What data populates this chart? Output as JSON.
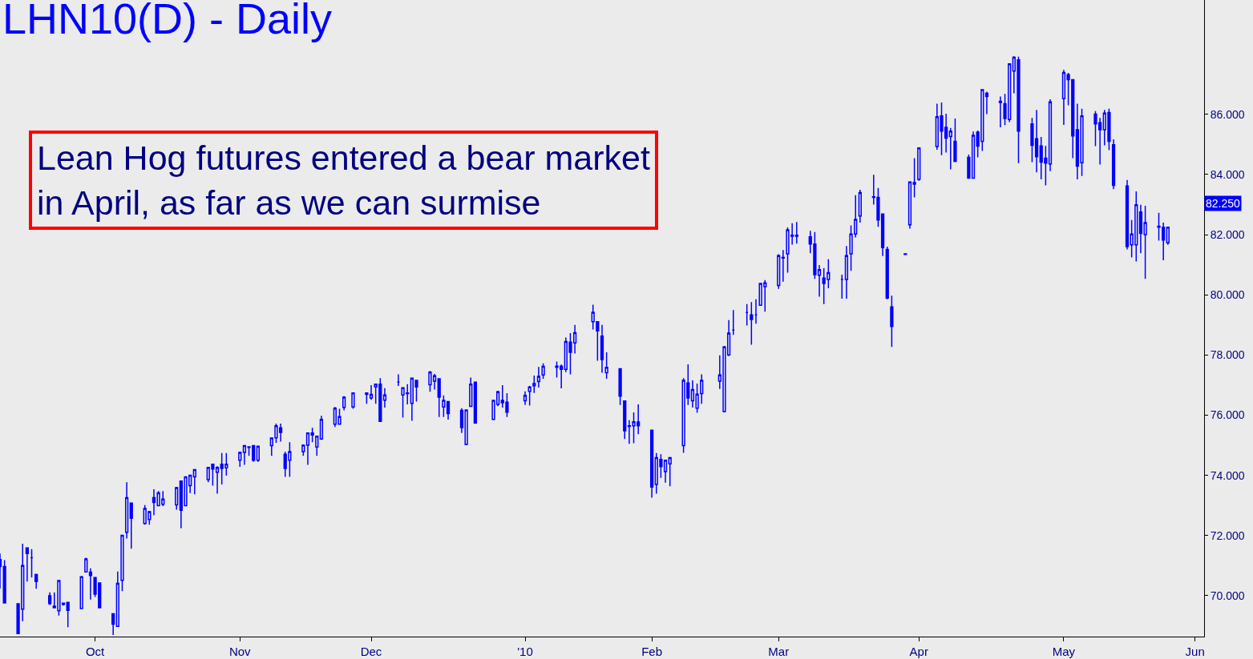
{
  "chart_data": {
    "type": "candlestick",
    "title": "LHN10(D) - Daily",
    "color": "#0000ff",
    "x": [
      "2009-09-10",
      "2009-09-11",
      "2009-09-14",
      "2009-09-15",
      "2009-09-16",
      "2009-09-17",
      "2009-09-18",
      "2009-09-21",
      "2009-09-22",
      "2009-09-23",
      "2009-09-24",
      "2009-09-25",
      "2009-09-28",
      "2009-09-29",
      "2009-09-30",
      "2009-10-01",
      "2009-10-02",
      "2009-10-05",
      "2009-10-06",
      "2009-10-07",
      "2009-10-08",
      "2009-10-09",
      "2009-10-12",
      "2009-10-13",
      "2009-10-14",
      "2009-10-15",
      "2009-10-16",
      "2009-10-19",
      "2009-10-20",
      "2009-10-21",
      "2009-10-22",
      "2009-10-23",
      "2009-10-26",
      "2009-10-27",
      "2009-10-28",
      "2009-10-29",
      "2009-10-30",
      "2009-11-02",
      "2009-11-03",
      "2009-11-04",
      "2009-11-05",
      "2009-11-06",
      "2009-11-09",
      "2009-11-10",
      "2009-11-11",
      "2009-11-12",
      "2009-11-13",
      "2009-11-16",
      "2009-11-17",
      "2009-11-18",
      "2009-11-19",
      "2009-11-20",
      "2009-11-23",
      "2009-11-24",
      "2009-11-25",
      "2009-11-27",
      "2009-11-30",
      "2009-12-01",
      "2009-12-02",
      "2009-12-03",
      "2009-12-04",
      "2009-12-07",
      "2009-12-08",
      "2009-12-09",
      "2009-12-10",
      "2009-12-11",
      "2009-12-14",
      "2009-12-15",
      "2009-12-16",
      "2009-12-17",
      "2009-12-18",
      "2009-12-21",
      "2009-12-22",
      "2009-12-23",
      "2009-12-24",
      "2009-12-28",
      "2009-12-29",
      "2009-12-30",
      "2009-12-31",
      "2010-01-04",
      "2010-01-05",
      "2010-01-06",
      "2010-01-07",
      "2010-01-08",
      "2010-01-11",
      "2010-01-12",
      "2010-01-13",
      "2010-01-14",
      "2010-01-15",
      "2010-01-19",
      "2010-01-20",
      "2010-01-21",
      "2010-01-22",
      "2010-01-25",
      "2010-01-26",
      "2010-01-27",
      "2010-01-28",
      "2010-01-29",
      "2010-02-01",
      "2010-02-02",
      "2010-02-03",
      "2010-02-04",
      "2010-02-05",
      "2010-02-08",
      "2010-02-09",
      "2010-02-10",
      "2010-02-11",
      "2010-02-12",
      "2010-02-16",
      "2010-02-17",
      "2010-02-18",
      "2010-02-19",
      "2010-02-22",
      "2010-02-23",
      "2010-02-24",
      "2010-02-25",
      "2010-02-26",
      "2010-03-01",
      "2010-03-02",
      "2010-03-03",
      "2010-03-04",
      "2010-03-05",
      "2010-03-08",
      "2010-03-09",
      "2010-03-10",
      "2010-03-11",
      "2010-03-12",
      "2010-03-15",
      "2010-03-16",
      "2010-03-17",
      "2010-03-18",
      "2010-03-19",
      "2010-03-22",
      "2010-03-23",
      "2010-03-24",
      "2010-03-25",
      "2010-03-26",
      "2010-03-29",
      "2010-03-30",
      "2010-03-31",
      "2010-04-01",
      "2010-04-05",
      "2010-04-06",
      "2010-04-07",
      "2010-04-08",
      "2010-04-09",
      "2010-04-12",
      "2010-04-13",
      "2010-04-14",
      "2010-04-15",
      "2010-04-16",
      "2010-04-19",
      "2010-04-20",
      "2010-04-21",
      "2010-04-22",
      "2010-04-23",
      "2010-04-26",
      "2010-04-27",
      "2010-04-28",
      "2010-04-29",
      "2010-04-30",
      "2010-05-03",
      "2010-05-04",
      "2010-05-05",
      "2010-05-06",
      "2010-05-07",
      "2010-05-10",
      "2010-05-11",
      "2010-05-12",
      "2010-05-13",
      "2010-05-14",
      "2010-05-17",
      "2010-05-18",
      "2010-05-19",
      "2010-05-20",
      "2010-05-21",
      "2010-05-24",
      "2010-05-25",
      "2010-05-26"
    ],
    "ohlc": [
      [
        71.2,
        71.4,
        70.24,
        70.97
      ],
      [
        70.97,
        71.18,
        69.76,
        69.76
      ],
      [
        69.73,
        69.73,
        68.73,
        68.74
      ],
      [
        69.55,
        71.73,
        69.15,
        71.0
      ],
      [
        71.59,
        71.59,
        70.47,
        71.4
      ],
      [
        71.26,
        71.55,
        70.6,
        71.26
      ],
      [
        70.7,
        70.73,
        70.23,
        70.47
      ],
      [
        70.0,
        70.11,
        69.69,
        69.74
      ],
      [
        69.6,
        70.11,
        69.58,
        69.65
      ],
      [
        69.5,
        70.5,
        69.34,
        70.5
      ],
      [
        69.71,
        69.76,
        69.67,
        69.75
      ],
      [
        69.78,
        69.8,
        68.95,
        69.51
      ],
      [
        69.57,
        70.63,
        69.55,
        70.63
      ],
      [
        70.79,
        71.26,
        70.78,
        71.22
      ],
      [
        70.78,
        70.91,
        69.87,
        70.67
      ],
      [
        70.6,
        70.62,
        69.96,
        70.05
      ],
      [
        70.42,
        70.42,
        69.58,
        69.6
      ],
      [
        69.4,
        69.4,
        68.69,
        69.05
      ],
      [
        68.98,
        70.8,
        68.97,
        70.41
      ],
      [
        70.51,
        72.01,
        70.15,
        72.01
      ],
      [
        72.11,
        73.77,
        71.9,
        73.26
      ],
      [
        73.08,
        73.08,
        71.56,
        72.57
      ],
      [
        72.4,
        73.01,
        72.36,
        72.9
      ],
      [
        72.53,
        72.82,
        72.36,
        72.79
      ],
      [
        73.26,
        73.54,
        72.67,
        73.1
      ],
      [
        72.99,
        73.48,
        72.98,
        73.42
      ],
      [
        73.04,
        73.48,
        72.98,
        73.21
      ],
      [
        73.02,
        73.62,
        72.86,
        73.59
      ],
      [
        73.81,
        73.81,
        72.24,
        72.84
      ],
      [
        72.99,
        73.97,
        72.98,
        73.95
      ],
      [
        73.66,
        74.02,
        73.41,
        74.0
      ],
      [
        73.95,
        74.21,
        73.37,
        74.19
      ],
      [
        73.86,
        74.28,
        73.77,
        74.26
      ],
      [
        74.37,
        74.38,
        73.66,
        74.21
      ],
      [
        74.1,
        74.3,
        73.39,
        74.26
      ],
      [
        74.37,
        74.74,
        73.7,
        74.23
      ],
      [
        74.25,
        74.74,
        73.99,
        74.37
      ],
      [
        74.5,
        74.79,
        74.28,
        74.76
      ],
      [
        74.76,
        75.0,
        74.35,
        74.99
      ],
      [
        74.93,
        74.97,
        74.65,
        74.95
      ],
      [
        74.99,
        75.0,
        74.45,
        74.5
      ],
      [
        74.5,
        74.99,
        74.45,
        74.97
      ],
      [
        74.99,
        75.25,
        74.65,
        75.24
      ],
      [
        75.25,
        75.72,
        75.08,
        75.65
      ],
      [
        75.58,
        75.72,
        75.12,
        75.43
      ],
      [
        74.7,
        74.79,
        73.95,
        74.23
      ],
      [
        74.5,
        75.1,
        73.95,
        74.79
      ],
      [
        74.79,
        75.03,
        74.65,
        75.0
      ],
      [
        75.0,
        75.43,
        74.35,
        75.41
      ],
      [
        75.34,
        75.58,
        75.1,
        75.41
      ],
      [
        74.94,
        75.31,
        74.65,
        75.3
      ],
      [
        75.21,
        75.98,
        75.18,
        75.86
      ],
      [
        75.7,
        76.27,
        75.61,
        76.23
      ],
      [
        75.7,
        76.21,
        75.68,
        75.95
      ],
      [
        76.26,
        76.63,
        76.16,
        76.6
      ],
      [
        76.27,
        76.76,
        76.21,
        76.74
      ],
      [
        76.74,
        76.76,
        76.38,
        76.69
      ],
      [
        76.57,
        77.0,
        76.51,
        76.69
      ],
      [
        76.94,
        77.05,
        76.38,
        77.03
      ],
      [
        77.03,
        77.23,
        75.77,
        75.79
      ],
      [
        76.5,
        76.9,
        76.25,
        76.67
      ],
      [
        77.1,
        77.36,
        76.97,
        77.1
      ],
      [
        76.67,
        76.92,
        75.92,
        76.91
      ],
      [
        76.74,
        77.03,
        76.36,
        76.72
      ],
      [
        76.39,
        77.25,
        75.81,
        77.23
      ],
      [
        77.16,
        77.18,
        76.45,
        76.94
      ],
      [
        77.01,
        77.47,
        76.78,
        77.43
      ],
      [
        77.13,
        77.37,
        76.85,
        77.31
      ],
      [
        77.21,
        77.21,
        75.94,
        76.6
      ],
      [
        76.27,
        76.66,
        75.94,
        76.49
      ],
      [
        76.45,
        76.47,
        75.85,
        76.05
      ],
      [
        76.16,
        76.23,
        75.41,
        75.59
      ],
      [
        75.03,
        76.18,
        75.0,
        76.17
      ],
      [
        76.29,
        77.25,
        76.27,
        77.03
      ],
      [
        77.1,
        77.1,
        75.71,
        75.74
      ],
      [
        75.86,
        76.51,
        75.83,
        76.49
      ],
      [
        76.36,
        76.81,
        76.3,
        76.78
      ],
      [
        76.49,
        77.0,
        76.25,
        76.41
      ],
      [
        76.43,
        76.73,
        75.94,
        76.1
      ],
      [
        76.48,
        76.79,
        76.34,
        76.66
      ],
      [
        76.79,
        76.97,
        76.32,
        76.94
      ],
      [
        76.98,
        77.32,
        76.74,
        77.05
      ],
      [
        77.12,
        77.6,
        76.92,
        77.29
      ],
      [
        77.34,
        77.72,
        77.21,
        77.62
      ],
      [
        77.59,
        77.78,
        77.25,
        77.63
      ],
      [
        77.63,
        77.68,
        76.89,
        77.52
      ],
      [
        77.52,
        78.58,
        77.43,
        78.45
      ],
      [
        78.43,
        78.73,
        77.36,
        78.09
      ],
      [
        78.4,
        79.0,
        78.05,
        78.74
      ],
      [
        79.11,
        79.67,
        78.85,
        79.42
      ],
      [
        79.11,
        79.13,
        77.81,
        78.8
      ],
      [
        78.63,
        79.0,
        77.41,
        77.85
      ],
      [
        77.41,
        78.09,
        77.21,
        77.59
      ],
      [
        77.54,
        77.54,
        76.34,
        76.63
      ],
      [
        76.47,
        76.47,
        75.21,
        75.48
      ],
      [
        75.65,
        75.83,
        75.05,
        75.63
      ],
      [
        75.65,
        76.09,
        75.07,
        75.78
      ],
      [
        75.77,
        76.36,
        75.37,
        75.65
      ],
      [
        75.5,
        75.5,
        73.26,
        73.61
      ],
      [
        73.7,
        74.74,
        73.39,
        74.59
      ],
      [
        74.53,
        74.7,
        73.92,
        74.29
      ],
      [
        74.12,
        74.5,
        73.76,
        74.5
      ],
      [
        74.38,
        74.61,
        73.64,
        74.59
      ],
      [
        74.99,
        77.23,
        74.75,
        77.16
      ],
      [
        77.07,
        77.69,
        76.34,
        76.57
      ],
      [
        76.48,
        77.16,
        76.25,
        76.85
      ],
      [
        76.23,
        77.05,
        76.08,
        76.7
      ],
      [
        76.72,
        77.36,
        76.38,
        77.16
      ],
      [
        77.13,
        77.99,
        76.87,
        77.34
      ],
      [
        76.12,
        78.3,
        76.09,
        78.27
      ],
      [
        78.0,
        79.16,
        77.96,
        78.73
      ],
      [
        78.83,
        79.49,
        78.67,
        78.83
      ],
      [
        79.41,
        79.69,
        78.98,
        79.41
      ],
      [
        79.33,
        79.76,
        78.34,
        79.18
      ],
      [
        79.33,
        79.85,
        79.04,
        79.33
      ],
      [
        79.65,
        80.38,
        79.65,
        80.38
      ],
      [
        80.27,
        80.49,
        79.44,
        80.4
      ],
      [
        80.31,
        81.35,
        80.2,
        81.3
      ],
      [
        81.24,
        81.49,
        80.44,
        81.22
      ],
      [
        81.36,
        82.24,
        80.74,
        82.16
      ],
      [
        81.98,
        82.38,
        81.67,
        81.95
      ],
      [
        81.98,
        82.42,
        81.7,
        81.95
      ],
      [
        81.93,
        82.13,
        81.38,
        81.69
      ],
      [
        81.69,
        82.09,
        80.53,
        80.67
      ],
      [
        80.65,
        80.99,
        79.94,
        80.84
      ],
      [
        80.56,
        80.89,
        79.69,
        80.38
      ],
      [
        80.51,
        81.18,
        80.22,
        80.74
      ],
      [
        80.51,
        80.67,
        79.87,
        80.51
      ],
      [
        80.51,
        81.62,
        79.87,
        81.3
      ],
      [
        81.36,
        82.31,
        80.8,
        82.02
      ],
      [
        82.02,
        83.31,
        81.91,
        82.51
      ],
      [
        82.62,
        83.49,
        82.4,
        83.4
      ],
      [
        83.24,
        83.99,
        83.0,
        83.26
      ],
      [
        83.24,
        83.55,
        82.26,
        82.49
      ],
      [
        82.69,
        82.69,
        81.29,
        81.57
      ],
      [
        81.51,
        81.6,
        79.85,
        79.89
      ],
      [
        79.6,
        79.97,
        78.27,
        78.95
      ],
      [
        81.36,
        81.36,
        81.32,
        81.34
      ],
      [
        82.33,
        83.75,
        82.2,
        83.75
      ],
      [
        83.73,
        84.54,
        83.24,
        83.68
      ],
      [
        83.84,
        84.9,
        83.79,
        84.88
      ],
      [
        84.93,
        86.35,
        84.82,
        85.92
      ],
      [
        85.95,
        86.39,
        84.64,
        85.44
      ],
      [
        85.57,
        86.02,
        84.73,
        85.21
      ],
      [
        85.26,
        85.55,
        84.17,
        85.44
      ],
      [
        85.1,
        85.86,
        84.41,
        84.44
      ],
      [
        84.57,
        84.66,
        83.86,
        83.88
      ],
      [
        83.88,
        85.43,
        83.86,
        85.3
      ],
      [
        85.41,
        85.46,
        84.57,
        84.94
      ],
      [
        85.1,
        86.83,
        84.78,
        86.82
      ],
      [
        86.7,
        86.75,
        86.01,
        86.59
      ],
      [
        86.43,
        86.59,
        85.57,
        86.39
      ],
      [
        86.35,
        86.68,
        85.64,
        85.86
      ],
      [
        85.83,
        87.7,
        85.74,
        87.68
      ],
      [
        87.44,
        87.93,
        86.7,
        87.9
      ],
      [
        87.81,
        87.92,
        84.38,
        85.44
      ],
      [
        85.68,
        85.88,
        84.41,
        84.97
      ],
      [
        85.19,
        86.15,
        84.07,
        84.59
      ],
      [
        84.95,
        85.25,
        83.84,
        84.41
      ],
      [
        84.54,
        84.95,
        83.64,
        84.38
      ],
      [
        84.35,
        86.5,
        84.11,
        86.41
      ],
      [
        86.52,
        87.48,
        85.65,
        87.39
      ],
      [
        87.32,
        87.38,
        86.3,
        87.15
      ],
      [
        87.15,
        87.16,
        84.54,
        85.28
      ],
      [
        85.49,
        86.35,
        83.84,
        84.28
      ],
      [
        84.39,
        86.19,
        83.95,
        85.95
      ],
      [
        86.01,
        86.11,
        84.94,
        85.68
      ],
      [
        85.72,
        85.88,
        84.33,
        85.49
      ],
      [
        85.49,
        86.15,
        84.97,
        86.04
      ],
      [
        86.06,
        86.19,
        84.81,
        85.1
      ],
      [
        84.99,
        85.17,
        83.51,
        83.64
      ],
      [
        83.62,
        83.82,
        81.51,
        81.6
      ],
      [
        81.66,
        82.49,
        81.24,
        82.02
      ],
      [
        81.66,
        83.44,
        81.11,
        82.99
      ],
      [
        82.75,
        82.99,
        81.38,
        82.04
      ],
      [
        82.0,
        82.96,
        80.53,
        82.4
      ],
      [
        82.28,
        82.73,
        81.8,
        82.25
      ],
      [
        82.25,
        82.4,
        81.15,
        81.82
      ],
      [
        81.73,
        82.26,
        81.66,
        82.25
      ]
    ],
    "xlim": [
      "2009-09-10",
      "2010-06-03"
    ],
    "xticks": [
      {
        "value": "2009-10-01",
        "label": "Oct"
      },
      {
        "value": "2009-11-02",
        "label": "Nov"
      },
      {
        "value": "2009-12-01",
        "label": "Dec"
      },
      {
        "value": "2010-01-04",
        "label": "'10"
      },
      {
        "value": "2010-02-01",
        "label": "Feb"
      },
      {
        "value": "2010-03-01",
        "label": "Mar"
      },
      {
        "value": "2010-04-01",
        "label": "Apr"
      },
      {
        "value": "2010-05-03",
        "label": "May"
      },
      {
        "value": "2010-06-01",
        "label": "Jun"
      }
    ],
    "ylim": [
      68.64,
      89.8
    ],
    "yticks": [
      {
        "value": 70,
        "label": "70.000"
      },
      {
        "value": 72,
        "label": "72.000"
      },
      {
        "value": 74,
        "label": "74.000"
      },
      {
        "value": 76,
        "label": "76.000"
      },
      {
        "value": 78,
        "label": "78.000"
      },
      {
        "value": 80,
        "label": "80.000"
      },
      {
        "value": 82,
        "label": "82.000"
      },
      {
        "value": 84,
        "label": "84.000"
      },
      {
        "value": 86,
        "label": "86.000"
      }
    ],
    "annotations": [
      "Lean Hog futures entered a bear market\nin April, as far as we can surmise",
      "82.250"
    ]
  }
}
